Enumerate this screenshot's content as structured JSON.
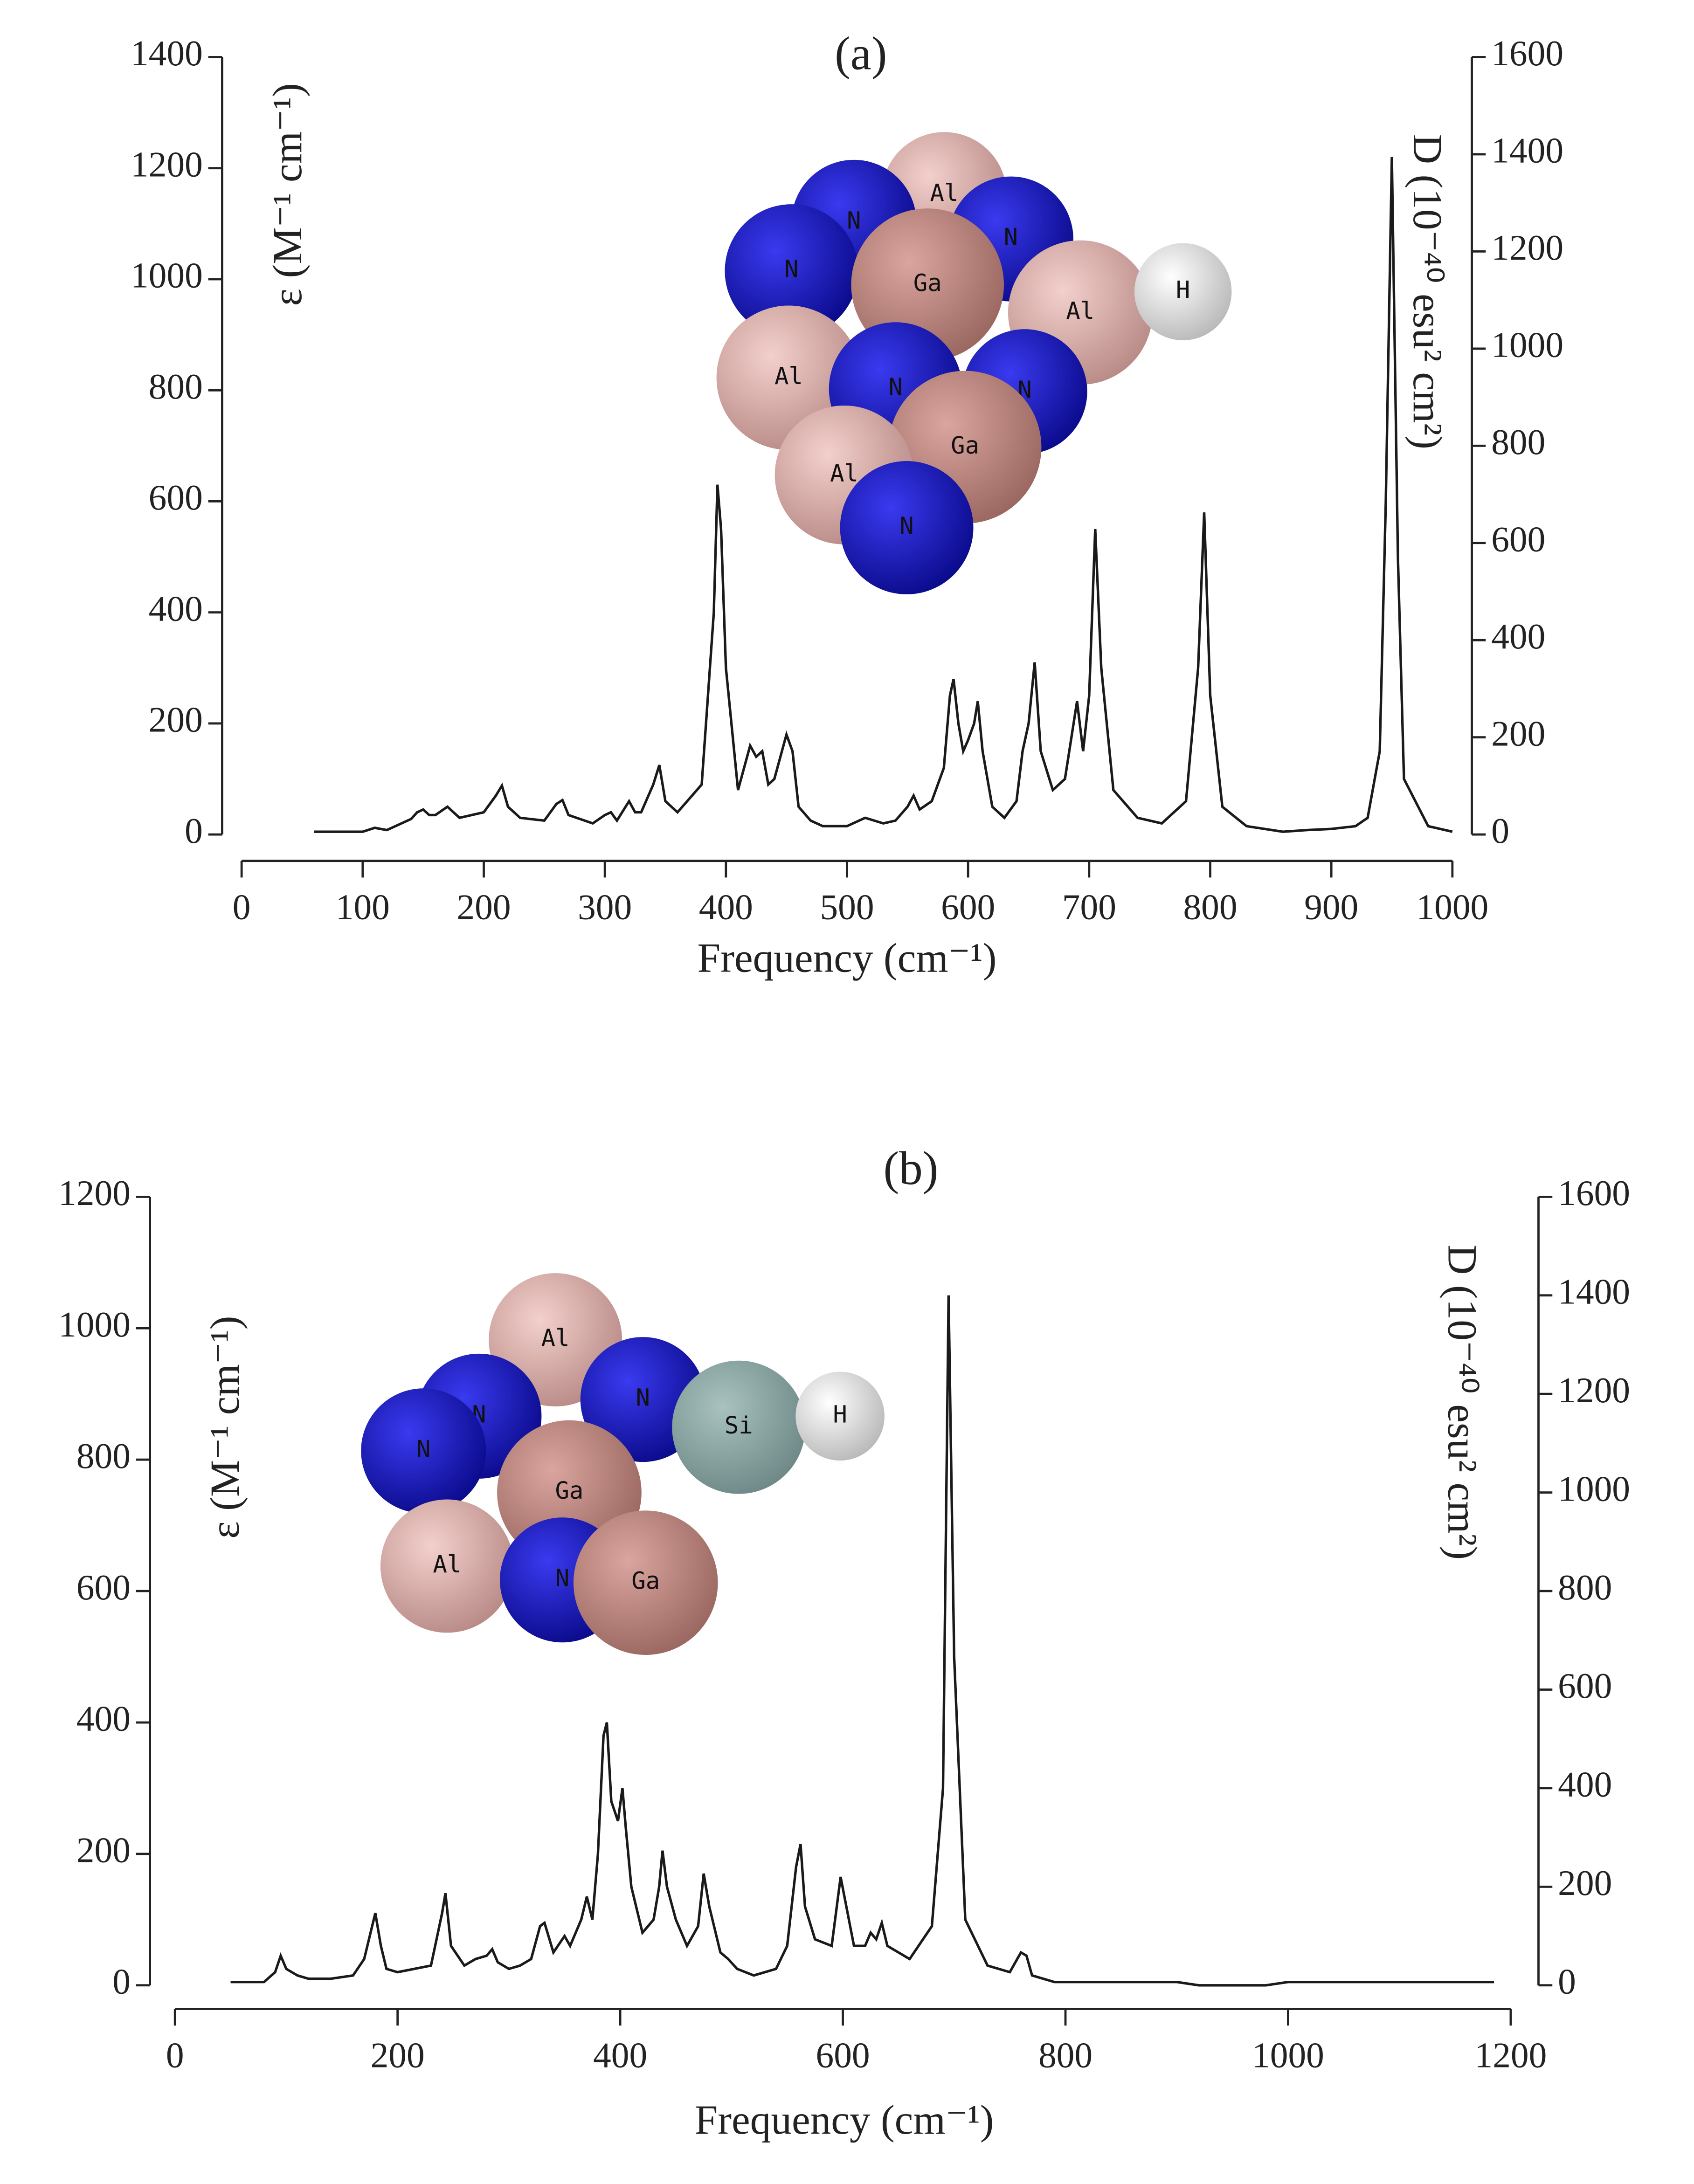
{
  "chart_data": [
    {
      "type": "line",
      "title": "(a)",
      "y_label": "ε (M⁻¹ cm⁻¹)",
      "y2_label": "D (10⁻⁴⁰ esu² cm²)",
      "x_label": "Frequency (cm⁻¹)",
      "color": "#1a1a1a",
      "x": [
        60,
        100,
        110,
        120,
        140,
        145,
        150,
        155,
        160,
        170,
        180,
        200,
        210,
        215,
        220,
        230,
        250,
        260,
        265,
        270,
        290,
        300,
        305,
        310,
        320,
        325,
        330,
        340,
        345,
        350,
        360,
        380,
        390,
        393,
        396,
        400,
        410,
        420,
        425,
        430,
        435,
        440,
        450,
        455,
        460,
        470,
        480,
        500,
        515,
        530,
        540,
        550,
        555,
        560,
        570,
        580,
        585,
        588,
        592,
        596,
        600,
        605,
        608,
        612,
        620,
        630,
        640,
        645,
        650,
        655,
        660,
        670,
        680,
        690,
        695,
        700,
        705,
        710,
        720,
        740,
        760,
        780,
        790,
        795,
        800,
        810,
        830,
        860,
        880,
        900,
        920,
        930,
        940,
        945,
        950,
        955,
        960,
        980,
        1000
      ],
      "values": [
        5,
        5,
        12,
        8,
        28,
        40,
        45,
        35,
        35,
        50,
        30,
        40,
        70,
        88,
        50,
        30,
        25,
        55,
        62,
        35,
        20,
        35,
        40,
        25,
        60,
        40,
        40,
        90,
        125,
        60,
        40,
        90,
        400,
        630,
        550,
        300,
        80,
        160,
        140,
        150,
        90,
        100,
        180,
        150,
        50,
        25,
        15,
        15,
        30,
        20,
        25,
        50,
        70,
        45,
        60,
        120,
        250,
        280,
        200,
        150,
        170,
        200,
        240,
        150,
        50,
        30,
        60,
        150,
        200,
        310,
        150,
        80,
        100,
        240,
        150,
        250,
        550,
        300,
        80,
        30,
        20,
        60,
        300,
        580,
        250,
        50,
        15,
        5,
        8,
        10,
        15,
        30,
        150,
        600,
        1220,
        500,
        100,
        15,
        5
      ],
      "xlim": [
        0,
        1000
      ],
      "xticks": [
        0,
        100,
        200,
        300,
        400,
        500,
        600,
        700,
        800,
        900,
        1000
      ],
      "ylim": [
        0,
        1400
      ],
      "yticks": [
        0,
        200,
        400,
        600,
        800,
        1000,
        1200,
        1400
      ],
      "y2lim": [
        0,
        1600
      ],
      "y2ticks": [
        0,
        200,
        400,
        600,
        800,
        1000,
        1200,
        1400,
        1600
      ],
      "inset_labels": [
        "Al",
        "N",
        "N",
        "N",
        "Ga",
        "Al",
        "H",
        "Al",
        "N",
        "N",
        "Ga",
        "Al",
        "N"
      ]
    },
    {
      "type": "line",
      "title": "(b)",
      "y_label": "ε (M⁻¹ cm⁻¹)",
      "y2_label": "D (10⁻⁴⁰ esu² cm²)",
      "x_label": "Frequency (cm⁻¹)",
      "color": "#1a1a1a",
      "x": [
        50,
        80,
        90,
        95,
        100,
        110,
        120,
        140,
        160,
        170,
        180,
        185,
        190,
        200,
        230,
        240,
        243,
        248,
        260,
        270,
        280,
        285,
        290,
        300,
        310,
        320,
        328,
        332,
        340,
        350,
        355,
        365,
        370,
        375,
        380,
        385,
        388,
        392,
        398,
        402,
        405,
        410,
        420,
        430,
        435,
        438,
        442,
        450,
        460,
        470,
        475,
        480,
        490,
        497,
        505,
        520,
        540,
        550,
        558,
        562,
        566,
        575,
        590,
        598,
        602,
        610,
        620,
        625,
        630,
        635,
        640,
        660,
        680,
        690,
        695,
        700,
        710,
        730,
        750,
        760,
        765,
        770,
        790,
        900,
        920,
        980,
        1000,
        1185
      ],
      "values": [
        5,
        5,
        20,
        45,
        25,
        15,
        10,
        10,
        15,
        40,
        110,
        60,
        25,
        20,
        30,
        110,
        140,
        60,
        30,
        40,
        45,
        55,
        35,
        25,
        30,
        40,
        90,
        95,
        50,
        75,
        60,
        100,
        135,
        100,
        200,
        380,
        400,
        280,
        250,
        300,
        240,
        150,
        80,
        100,
        150,
        205,
        150,
        100,
        60,
        90,
        170,
        120,
        50,
        40,
        25,
        15,
        25,
        60,
        180,
        215,
        120,
        70,
        60,
        165,
        130,
        60,
        60,
        80,
        70,
        95,
        60,
        40,
        90,
        300,
        1050,
        500,
        100,
        30,
        20,
        50,
        45,
        15,
        5,
        5,
        0,
        0,
        5,
        5
      ],
      "xlim": [
        0,
        1200
      ],
      "xticks": [
        0,
        200,
        400,
        600,
        800,
        1000,
        1200
      ],
      "ylim": [
        0,
        1200
      ],
      "yticks": [
        0,
        200,
        400,
        600,
        800,
        1000,
        1200
      ],
      "y2lim": [
        0,
        1600
      ],
      "y2ticks": [
        0,
        200,
        400,
        600,
        800,
        1000,
        1200,
        1400,
        1600
      ],
      "inset_labels": [
        "Al",
        "N",
        "N",
        "N",
        "Si",
        "H",
        "Ga",
        "Al",
        "N",
        "Ga"
      ]
    }
  ]
}
